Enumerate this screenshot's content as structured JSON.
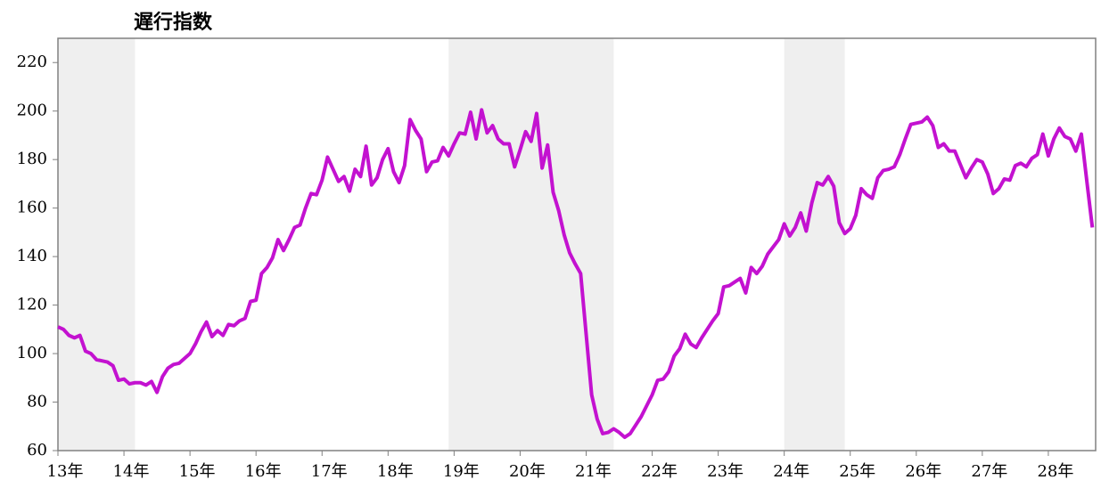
{
  "chart_data": {
    "type": "line",
    "title": "遅行指数",
    "x": [
      0,
      1,
      2,
      3,
      4,
      5,
      6,
      7,
      8,
      9,
      10,
      11,
      12,
      13,
      14,
      15,
      16,
      17,
      18,
      19,
      20,
      21,
      22,
      23,
      24,
      25,
      26,
      27,
      28,
      29,
      30,
      31,
      32,
      33,
      34,
      35,
      36,
      37,
      38,
      39,
      40,
      41,
      42,
      43,
      44,
      45,
      46,
      47,
      48,
      49,
      50,
      51,
      52,
      53,
      54,
      55,
      56,
      57,
      58,
      59,
      60,
      61,
      62,
      63,
      64,
      65,
      66,
      67,
      68,
      69,
      70,
      71,
      72,
      73,
      74,
      75,
      76,
      77,
      78,
      79,
      80,
      81,
      82,
      83,
      84,
      85,
      86,
      87,
      88,
      89,
      90,
      91,
      92,
      93,
      94,
      95,
      96,
      97,
      98,
      99,
      100,
      101,
      102,
      103,
      104,
      105,
      106,
      107,
      108,
      109,
      110,
      111,
      112,
      113,
      114,
      115,
      116,
      117,
      118,
      119,
      120,
      121,
      122,
      123,
      124,
      125,
      126,
      127,
      128,
      129,
      130,
      131,
      132,
      133,
      134,
      135,
      136,
      137,
      138,
      139,
      140,
      141,
      142,
      143,
      144,
      145,
      146,
      147,
      148,
      149,
      150,
      151,
      152,
      153,
      154,
      155,
      156,
      157,
      158,
      159,
      160,
      161,
      162,
      163,
      164,
      165,
      166,
      167,
      168,
      169,
      170,
      171,
      172,
      173,
      174,
      175,
      176,
      177,
      178,
      179,
      180,
      181,
      182,
      183,
      184,
      185,
      186,
      187,
      188
    ],
    "series": [
      {
        "color": "#c312d0",
        "values": [
          111,
          110,
          107.5,
          106.5,
          107.5,
          101,
          100,
          97.5,
          97,
          96.5,
          95,
          89,
          89.5,
          87.5,
          88,
          88,
          87,
          88.5,
          84,
          90.5,
          94,
          95.5,
          96,
          98,
          100,
          104,
          109,
          113,
          107,
          109.5,
          107.5,
          112,
          111.5,
          113.5,
          114.5,
          121.5,
          122,
          133,
          135.5,
          139.5,
          147,
          142.5,
          147,
          152,
          153,
          160,
          166,
          165.5,
          171.5,
          181,
          176,
          171,
          173,
          167,
          176,
          173,
          185.5,
          169.5,
          172.5,
          180,
          184.5,
          175,
          170.5,
          177.5,
          196.5,
          192,
          188.5,
          175,
          179,
          179.5,
          185,
          181.5,
          186.5,
          191,
          190.5,
          199.5,
          188.5,
          200.5,
          191,
          194,
          188.5,
          186.5,
          186.5,
          177,
          184,
          191.5,
          187.5,
          199,
          176.5,
          186,
          166.5,
          159,
          149,
          141.5,
          137,
          133,
          108,
          83,
          73,
          67,
          67.5,
          69,
          67.5,
          65.5,
          67,
          70.5,
          74,
          78.5,
          83,
          89,
          89.5,
          92.5,
          99,
          102,
          108,
          104,
          102.5,
          106.5,
          110,
          113.5,
          116.5,
          127.5,
          128,
          129.5,
          131,
          125,
          135.5,
          133,
          136,
          141,
          144,
          147,
          153.5,
          148.5,
          152,
          158,
          150.5,
          162,
          170.5,
          169.5,
          173,
          169,
          154,
          149.5,
          151.5,
          157,
          168,
          165.5,
          164,
          172.5,
          175.5,
          176,
          177,
          182,
          188.5,
          194.5,
          195,
          195.5,
          197.5,
          194,
          185,
          186.5,
          183.5,
          183.5,
          178,
          172.5,
          176.5,
          180,
          179,
          174,
          166,
          168,
          172,
          171.5,
          177.5,
          178.5,
          177,
          180.5,
          182,
          190.5,
          181.5,
          188.5,
          193,
          189.5,
          188.5,
          183.5,
          190.5,
          171,
          152
        ]
      }
    ],
    "shading": [
      [
        0,
        14
      ],
      [
        71,
        101
      ],
      [
        132,
        143
      ]
    ],
    "shading_color": "#efefef",
    "xlim": [
      0,
      188.6
    ],
    "xticks": [
      {
        "value": 0,
        "label": "13年"
      },
      {
        "value": 12,
        "label": "14年"
      },
      {
        "value": 24,
        "label": "15年"
      },
      {
        "value": 36,
        "label": "16年"
      },
      {
        "value": 48,
        "label": "17年"
      },
      {
        "value": 60,
        "label": "18年"
      },
      {
        "value": 72,
        "label": "19年"
      },
      {
        "value": 84,
        "label": "20年"
      },
      {
        "value": 96,
        "label": "21年"
      },
      {
        "value": 108,
        "label": "22年"
      },
      {
        "value": 120,
        "label": "23年"
      },
      {
        "value": 132,
        "label": "24年"
      },
      {
        "value": 144,
        "label": "25年"
      },
      {
        "value": 156,
        "label": "26年"
      },
      {
        "value": 168,
        "label": "27年"
      },
      {
        "value": 180,
        "label": "28年"
      }
    ],
    "ylim": [
      60,
      230
    ],
    "yticks": [
      60,
      80,
      100,
      120,
      140,
      160,
      180,
      200,
      220
    ]
  }
}
